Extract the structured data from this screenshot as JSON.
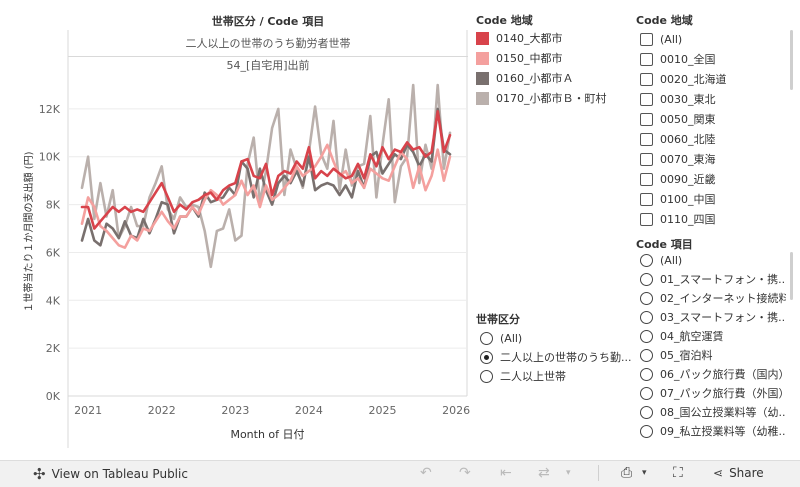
{
  "chart": {
    "title": "世帯区分 / Code 項目",
    "subtitle1": "二人以上の世帯のうち勤労者世帯",
    "subtitle2": "54_[自宅用]出前",
    "xlabel": "Month of 日付",
    "ylabel": "１世帯当たり１か月間の支出額 (円)"
  },
  "chart_data": {
    "type": "line",
    "x_start": "2020-12",
    "x_end": "2025-12",
    "x_ticks": [
      "2021",
      "2022",
      "2023",
      "2024",
      "2025",
      "2026"
    ],
    "y_ticks": [
      "0K",
      "2K",
      "4K",
      "6K",
      "8K",
      "10K",
      "12K"
    ],
    "y_tick_values": [
      0,
      2000,
      4000,
      6000,
      8000,
      10000,
      12000
    ],
    "ylim": [
      0,
      13500
    ],
    "grid": true,
    "series": [
      {
        "name": "0140_大都市",
        "color": "#d8434b",
        "values": [
          7900,
          7900,
          7000,
          7300,
          7600,
          7900,
          7700,
          7900,
          7700,
          7800,
          7700,
          8100,
          8500,
          8900,
          8300,
          7700,
          8000,
          7800,
          8100,
          8200,
          8400,
          8500,
          8200,
          8600,
          8800,
          8900,
          9800,
          9900,
          9200,
          9100,
          9700,
          8400,
          9200,
          9400,
          9300,
          9800,
          9500,
          10400,
          9100,
          9400,
          9200,
          9500,
          9300,
          9100,
          9200,
          9700,
          9100,
          10100,
          9600,
          10400,
          9900,
          10300,
          10200,
          10600,
          10300,
          10400,
          10000,
          10200,
          11900,
          10200,
          10900
        ]
      },
      {
        "name": "0150_中都市",
        "color": "#f4a09e",
        "values": [
          7200,
          8300,
          7900,
          7100,
          6900,
          6600,
          6300,
          6200,
          6700,
          6500,
          7000,
          6900,
          7300,
          7700,
          7300,
          7000,
          7500,
          7500,
          7900,
          7600,
          8200,
          8600,
          8400,
          8000,
          8200,
          8400,
          9000,
          8400,
          8800,
          7900,
          8800,
          8200,
          8400,
          8700,
          9000,
          9600,
          9200,
          9400,
          9600,
          10000,
          10500,
          9800,
          9200,
          9400,
          8900,
          9100,
          8700,
          9500,
          9300,
          9100,
          9000,
          9600,
          10200,
          9900,
          8700,
          9600,
          8600,
          9200,
          10300,
          9000,
          10000
        ]
      },
      {
        "name": "0160_小都市Ａ",
        "color": "#79706e",
        "values": [
          6500,
          7400,
          6500,
          6300,
          7200,
          7000,
          6600,
          7300,
          6700,
          6600,
          7400,
          6800,
          7400,
          8100,
          8000,
          6800,
          7500,
          7500,
          7900,
          7500,
          8500,
          8100,
          8200,
          8300,
          8700,
          8400,
          9800,
          9500,
          8300,
          9500,
          8600,
          8000,
          8900,
          9200,
          8900,
          9400,
          8800,
          10000,
          8600,
          8800,
          8900,
          8800,
          8400,
          8800,
          8300,
          9400,
          8700,
          10000,
          10200,
          9300,
          9700,
          10100,
          9900,
          10500,
          10200,
          9600,
          10100,
          9800,
          12000,
          10300,
          10100
        ]
      },
      {
        "name": "0170_小都市Ｂ・町村",
        "color": "#bab0ac",
        "values": [
          8700,
          10000,
          7400,
          8900,
          7500,
          8600,
          6600,
          7100,
          7900,
          7100,
          7100,
          8300,
          8900,
          9600,
          7800,
          7400,
          8300,
          7900,
          8000,
          7900,
          6900,
          5400,
          6900,
          7000,
          7800,
          6500,
          6700,
          9700,
          10800,
          8100,
          9400,
          11200,
          12000,
          8400,
          10300,
          9500,
          8700,
          10200,
          12100,
          10100,
          9500,
          11500,
          8600,
          10300,
          8800,
          9600,
          9700,
          11700,
          8300,
          10500,
          12400,
          8100,
          9600,
          10000,
          13000,
          8900,
          10500,
          9500,
          13000,
          9500,
          11000
        ]
      }
    ]
  },
  "legend_series": {
    "title": "Code 地域",
    "items": [
      {
        "label": "0140_大都市",
        "color": "#d8434b"
      },
      {
        "label": "0150_中都市",
        "color": "#f4a09e"
      },
      {
        "label": "0160_小都市Ａ",
        "color": "#79706e"
      },
      {
        "label": "0170_小都市Ｂ・町村",
        "color": "#bab0ac"
      }
    ]
  },
  "filter_region": {
    "title": "Code 地域",
    "items": [
      "(All)",
      "0010_全国",
      "0020_北海道",
      "0030_東北",
      "0050_関東",
      "0060_北陸",
      "0070_東海",
      "0090_近畿",
      "0100_中国",
      "0110_四国"
    ]
  },
  "filter_household": {
    "title": "世帯区分",
    "selected_index": 1,
    "items": [
      "(All)",
      "二人以上の世帯のうち勤...",
      "二人以上世帯"
    ]
  },
  "filter_item": {
    "title": "Code 項目",
    "items": [
      "(All)",
      "01_スマートフォン・携...",
      "02_インターネット接続料",
      "03_スマートフォン・携...",
      "04_航空運賃",
      "05_宿泊料",
      "06_パック旅行費（国内）",
      "07_パック旅行費（外国）",
      "08_国公立授業料等（幼...",
      "09_私立授業料等（幼稚..."
    ]
  },
  "toolbar": {
    "view_label": "View on Tableau Public",
    "share_label": "Share"
  }
}
